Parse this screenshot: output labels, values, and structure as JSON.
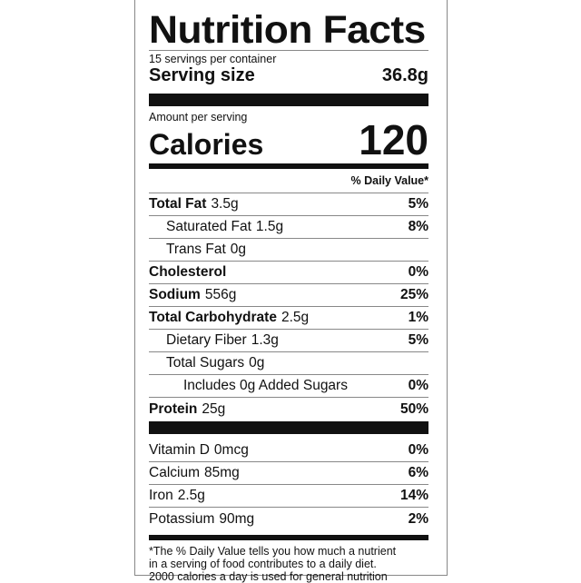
{
  "title": "Nutrition Facts",
  "servings_per_container": "15 servings per container",
  "serving_size_label": "Serving size",
  "serving_size_value": "36.8g",
  "amount_per_serving": "Amount per serving",
  "calories_label": "Calories",
  "calories_value": "120",
  "daily_value_header": "% Daily Value*",
  "nutrients": [
    {
      "name": "Total Fat",
      "amount": "3.5g",
      "dv": "5%",
      "bold": true,
      "indent": 0
    },
    {
      "name": "Saturated Fat",
      "amount": "1.5g",
      "dv": "8%",
      "bold": false,
      "indent": 1
    },
    {
      "name": "Trans Fat",
      "amount": "0g",
      "dv": "",
      "bold": false,
      "indent": 1
    },
    {
      "name": "Cholesterol",
      "amount": "",
      "dv": "0%",
      "bold": true,
      "indent": 0
    },
    {
      "name": "Sodium",
      "amount": "556g",
      "dv": "25%",
      "bold": true,
      "indent": 0
    },
    {
      "name": "Total Carbohydrate",
      "amount": "2.5g",
      "dv": "1%",
      "bold": true,
      "indent": 0
    },
    {
      "name": "Dietary Fiber",
      "amount": "1.3g",
      "dv": "5%",
      "bold": false,
      "indent": 1
    },
    {
      "name": "Total Sugars",
      "amount": "0g",
      "dv": "",
      "bold": false,
      "indent": 1
    },
    {
      "name": "Includes 0g Added Sugars",
      "amount": "",
      "dv": "0%",
      "bold": false,
      "indent": 2
    },
    {
      "name": "Protein",
      "amount": "25g",
      "dv": "50%",
      "bold": true,
      "indent": 0
    }
  ],
  "vitamins": [
    {
      "name": "Vitamin D",
      "amount": "0mcg",
      "dv": "0%"
    },
    {
      "name": "Calcium",
      "amount": "85mg",
      "dv": "6%"
    },
    {
      "name": "Iron",
      "amount": "2.5g",
      "dv": "14%"
    },
    {
      "name": "Potassium",
      "amount": "90mg",
      "dv": "2%"
    }
  ],
  "footnote": [
    "*The % Daily Value tells you how much a nutrient",
    "in a serving of food contributes to a daily diet.",
    "2000 calories a day is used for general nutrition"
  ]
}
